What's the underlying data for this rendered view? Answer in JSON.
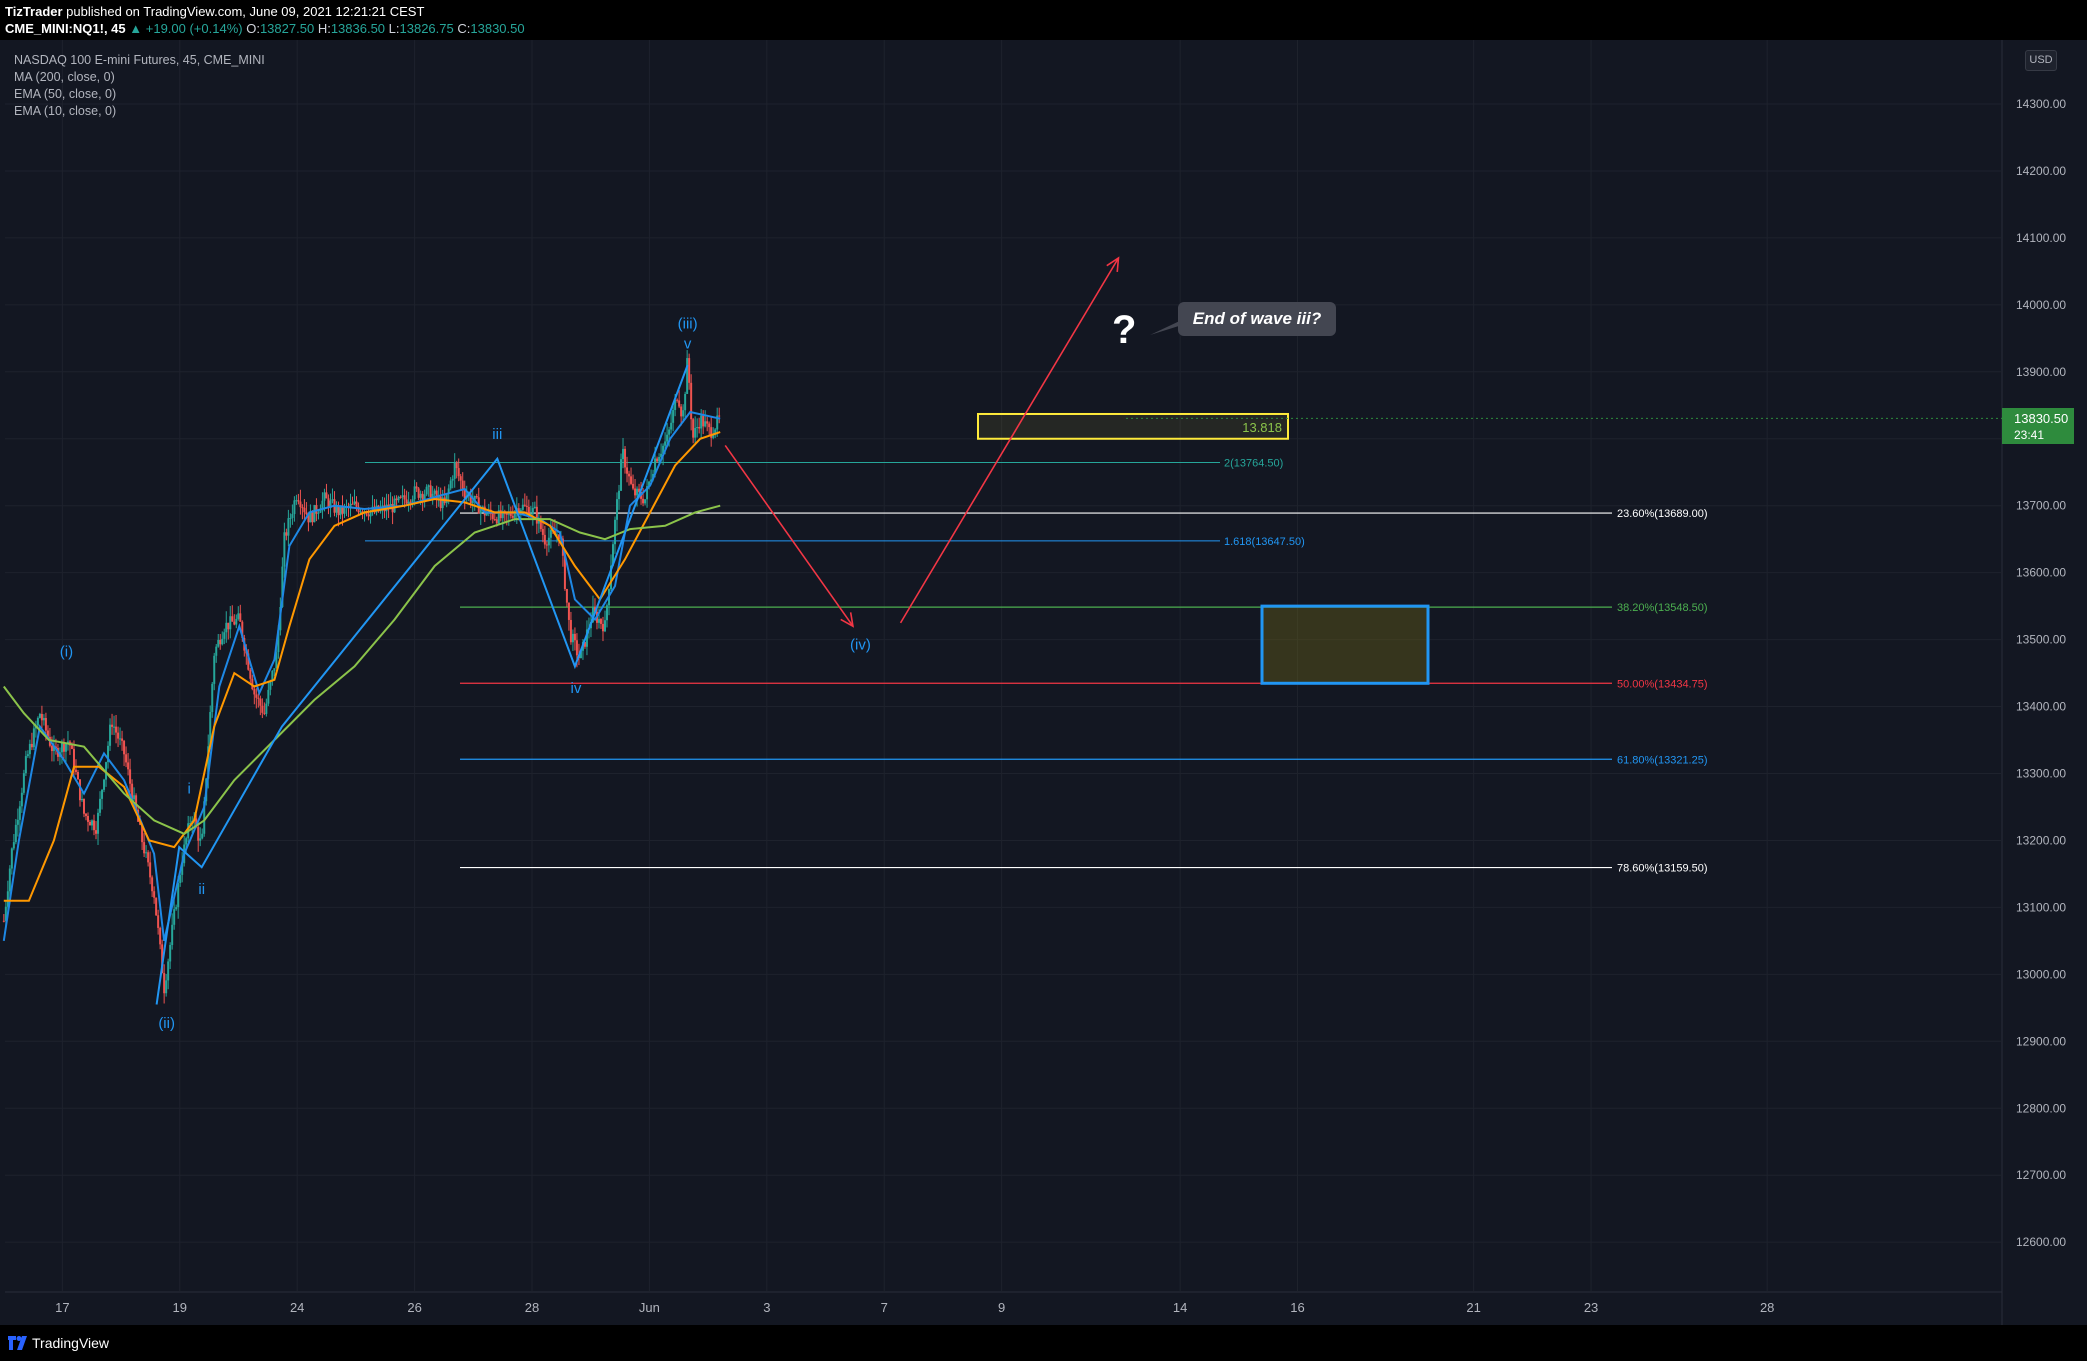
{
  "header": {
    "author": "TizTrader",
    "published": " published on TradingView.com, June 09, 2021 12:21:21 CEST",
    "symbol_line": "CME_MINI:NQ1!, 45",
    "change": "▲ +19.00 (+0.14%)",
    "o_label": "O:",
    "o_value": "13827.50",
    "h_label": "H:",
    "h_value": "13836.50",
    "l_label": "L:",
    "l_value": "13826.75",
    "c_label": "C:",
    "c_value": "13830.50"
  },
  "legend": {
    "title": "NASDAQ 100 E-mini Futures, 45, CME_MINI",
    "ma200": "MA (200, close, 0)",
    "ema50": "EMA (50, close, 0)",
    "ema10": "EMA (10, close, 0)"
  },
  "currency": "USD",
  "last_price": {
    "price": "13830.50",
    "countdown": "23:41"
  },
  "callout": "End of wave iii?",
  "question_mark": "?",
  "footer": {
    "brand": "TradingView"
  },
  "colors": {
    "background": "#131722",
    "ma200": "#8bc34a",
    "ema50": "#ff9800",
    "ema10": "#1e88e5",
    "wave": "#2196f3",
    "arrows": "#f23645",
    "yellow_box": "#ffeb3b",
    "up_candle": "#26a69a",
    "down_candle": "#ef5350"
  },
  "chart_data": {
    "type": "candlestick",
    "ylim": [
      12500,
      14400
    ],
    "y_ticks": [
      14300,
      14200,
      14100,
      14000,
      13900,
      13800,
      13700,
      13600,
      13500,
      13400,
      13300,
      13200,
      13100,
      13000,
      12900,
      12800,
      12700,
      12600
    ],
    "y_tick_labels": [
      "14300.00",
      "14200.00",
      "14100.00",
      "14000.00",
      "13900.00",
      "13800.00",
      "13700.00",
      "13600.00",
      "13500.00",
      "13400.00",
      "13300.00",
      "13200.00",
      "13100.00",
      "13000.00",
      "12900.00",
      "12800.00",
      "12700.00",
      "12600.00"
    ],
    "x_tick_labels": [
      "17",
      "19",
      "24",
      "26",
      "28",
      "Jun",
      "3",
      "7",
      "9",
      "14",
      "16",
      "21",
      "23",
      "28"
    ],
    "x_tick_index": [
      72,
      222,
      372,
      522,
      672,
      822,
      972,
      1122,
      1272,
      1500,
      1650,
      1875,
      2025,
      2250
    ],
    "x_range": [
      0,
      2550
    ],
    "price_path": [
      [
        0,
        13080
      ],
      [
        15,
        13180
      ],
      [
        45,
        13320
      ],
      [
        72,
        13390
      ],
      [
        100,
        13330
      ],
      [
        130,
        13350
      ],
      [
        160,
        13240
      ],
      [
        185,
        13220
      ],
      [
        215,
        13380
      ],
      [
        240,
        13330
      ],
      [
        270,
        13220
      ],
      [
        300,
        13120
      ],
      [
        320,
        12980
      ],
      [
        335,
        13060
      ],
      [
        355,
        13170
      ],
      [
        375,
        13240
      ],
      [
        395,
        13190
      ],
      [
        405,
        13310
      ],
      [
        420,
        13480
      ],
      [
        440,
        13520
      ],
      [
        470,
        13530
      ],
      [
        500,
        13420
      ],
      [
        520,
        13390
      ],
      [
        545,
        13480
      ],
      [
        560,
        13650
      ],
      [
        585,
        13720
      ],
      [
        610,
        13680
      ],
      [
        640,
        13710
      ],
      [
        670,
        13690
      ],
      [
        700,
        13700
      ],
      [
        740,
        13690
      ],
      [
        780,
        13700
      ],
      [
        820,
        13720
      ],
      [
        850,
        13720
      ],
      [
        880,
        13700
      ],
      [
        900,
        13760
      ],
      [
        920,
        13720
      ],
      [
        960,
        13690
      ],
      [
        1000,
        13680
      ],
      [
        1030,
        13700
      ],
      [
        1060,
        13690
      ],
      [
        1080,
        13650
      ],
      [
        1110,
        13660
      ],
      [
        1130,
        13510
      ],
      [
        1150,
        13470
      ],
      [
        1175,
        13540
      ],
      [
        1200,
        13520
      ],
      [
        1215,
        13640
      ],
      [
        1235,
        13780
      ],
      [
        1255,
        13720
      ],
      [
        1280,
        13710
      ],
      [
        1300,
        13770
      ],
      [
        1325,
        13800
      ],
      [
        1345,
        13870
      ],
      [
        1355,
        13830
      ],
      [
        1365,
        13920
      ],
      [
        1375,
        13800
      ],
      [
        1390,
        13830
      ],
      [
        1410,
        13810
      ],
      [
        1430,
        13830
      ]
    ],
    "moving_averages": [
      {
        "name": "EMA (10, close, 0)",
        "color": "#1e88e5",
        "points": [
          [
            0,
            13050
          ],
          [
            30,
            13200
          ],
          [
            72,
            13370
          ],
          [
            120,
            13320
          ],
          [
            160,
            13270
          ],
          [
            200,
            13330
          ],
          [
            240,
            13290
          ],
          [
            300,
            13180
          ],
          [
            320,
            13050
          ],
          [
            360,
            13180
          ],
          [
            400,
            13250
          ],
          [
            430,
            13430
          ],
          [
            470,
            13520
          ],
          [
            510,
            13420
          ],
          [
            540,
            13470
          ],
          [
            570,
            13640
          ],
          [
            610,
            13690
          ],
          [
            660,
            13700
          ],
          [
            720,
            13695
          ],
          [
            800,
            13700
          ],
          [
            870,
            13715
          ],
          [
            920,
            13725
          ],
          [
            960,
            13690
          ],
          [
            1020,
            13690
          ],
          [
            1070,
            13680
          ],
          [
            1110,
            13660
          ],
          [
            1140,
            13560
          ],
          [
            1180,
            13530
          ],
          [
            1220,
            13580
          ],
          [
            1250,
            13700
          ],
          [
            1290,
            13730
          ],
          [
            1330,
            13800
          ],
          [
            1370,
            13840
          ],
          [
            1430,
            13830
          ]
        ]
      },
      {
        "name": "EMA (50, close, 0)",
        "color": "#ff9800",
        "points": [
          [
            0,
            13110
          ],
          [
            50,
            13110
          ],
          [
            100,
            13200
          ],
          [
            140,
            13310
          ],
          [
            190,
            13310
          ],
          [
            240,
            13280
          ],
          [
            290,
            13200
          ],
          [
            340,
            13190
          ],
          [
            380,
            13230
          ],
          [
            420,
            13370
          ],
          [
            460,
            13450
          ],
          [
            500,
            13430
          ],
          [
            540,
            13440
          ],
          [
            570,
            13520
          ],
          [
            610,
            13620
          ],
          [
            660,
            13670
          ],
          [
            720,
            13690
          ],
          [
            800,
            13700
          ],
          [
            860,
            13710
          ],
          [
            920,
            13705
          ],
          [
            980,
            13690
          ],
          [
            1040,
            13690
          ],
          [
            1090,
            13670
          ],
          [
            1140,
            13610
          ],
          [
            1190,
            13560
          ],
          [
            1240,
            13620
          ],
          [
            1290,
            13690
          ],
          [
            1340,
            13760
          ],
          [
            1390,
            13800
          ],
          [
            1430,
            13810
          ]
        ]
      },
      {
        "name": "MA (200, close, 0)",
        "color": "#8bc34a",
        "points": [
          [
            0,
            13430
          ],
          [
            40,
            13390
          ],
          [
            90,
            13350
          ],
          [
            160,
            13340
          ],
          [
            240,
            13270
          ],
          [
            300,
            13230
          ],
          [
            360,
            13210
          ],
          [
            400,
            13230
          ],
          [
            460,
            13290
          ],
          [
            540,
            13350
          ],
          [
            620,
            13410
          ],
          [
            700,
            13460
          ],
          [
            780,
            13530
          ],
          [
            860,
            13610
          ],
          [
            940,
            13660
          ],
          [
            1020,
            13680
          ],
          [
            1090,
            13680
          ],
          [
            1150,
            13660
          ],
          [
            1200,
            13650
          ],
          [
            1250,
            13665
          ],
          [
            1320,
            13670
          ],
          [
            1380,
            13690
          ],
          [
            1430,
            13700
          ]
        ]
      }
    ],
    "waves": [
      {
        "color": "#2196f3",
        "points": [
          [
            305,
            12955
          ],
          [
            350,
            13190
          ],
          [
            395,
            13160
          ],
          [
            555,
            13370
          ],
          [
            985,
            13770
          ],
          [
            1140,
            13460
          ],
          [
            1365,
            13910
          ]
        ]
      }
    ],
    "wave_labels": [
      {
        "text": "(i)",
        "x": 125,
        "y": 13475
      },
      {
        "text": "(ii)",
        "x": 325,
        "y": 12920
      },
      {
        "text": "i",
        "x": 370,
        "y": 13270
      },
      {
        "text": "ii",
        "x": 395,
        "y": 13120
      },
      {
        "text": "iii",
        "x": 985,
        "y": 13800
      },
      {
        "text": "iv",
        "x": 1142,
        "y": 13420
      },
      {
        "text": "(iii)",
        "x": 1365,
        "y": 13965
      },
      {
        "text": "v",
        "x": 1365,
        "y": 13935
      },
      {
        "text": "(iv)",
        "x": 1710,
        "y": 13485
      }
    ],
    "fib_levels": [
      {
        "label": "23.60%(13689.00)",
        "value": 13689.0,
        "color": "#ffffff"
      },
      {
        "label": "38.20%(13548.50)",
        "value": 13548.5,
        "color": "#4caf50"
      },
      {
        "label": "50.00%(13434.75)",
        "value": 13434.75,
        "color": "#f23645"
      },
      {
        "label": "61.80%(13321.25)",
        "value": 13321.25,
        "color": "#2196f3"
      },
      {
        "label": "78.60%(13159.50)",
        "value": 13159.5,
        "color": "#ffffff"
      }
    ],
    "fib_extensions": [
      {
        "label": "2(13764.50)",
        "value": 13764.5,
        "color": "#26a69a"
      },
      {
        "label": "1.618(13647.50)",
        "value": 13647.5,
        "color": "#2196f3"
      }
    ],
    "yellow_box": {
      "label": "13.818",
      "from": 13800,
      "to": 13837
    },
    "target_box": {
      "from": 13434.75,
      "to": 13550
    },
    "arrows": [
      {
        "from": [
          1440,
          13790
        ],
        "to": [
          1695,
          13520
        ]
      },
      {
        "from": [
          1790,
          13525
        ],
        "to": [
          2225,
          14070
        ]
      }
    ]
  }
}
